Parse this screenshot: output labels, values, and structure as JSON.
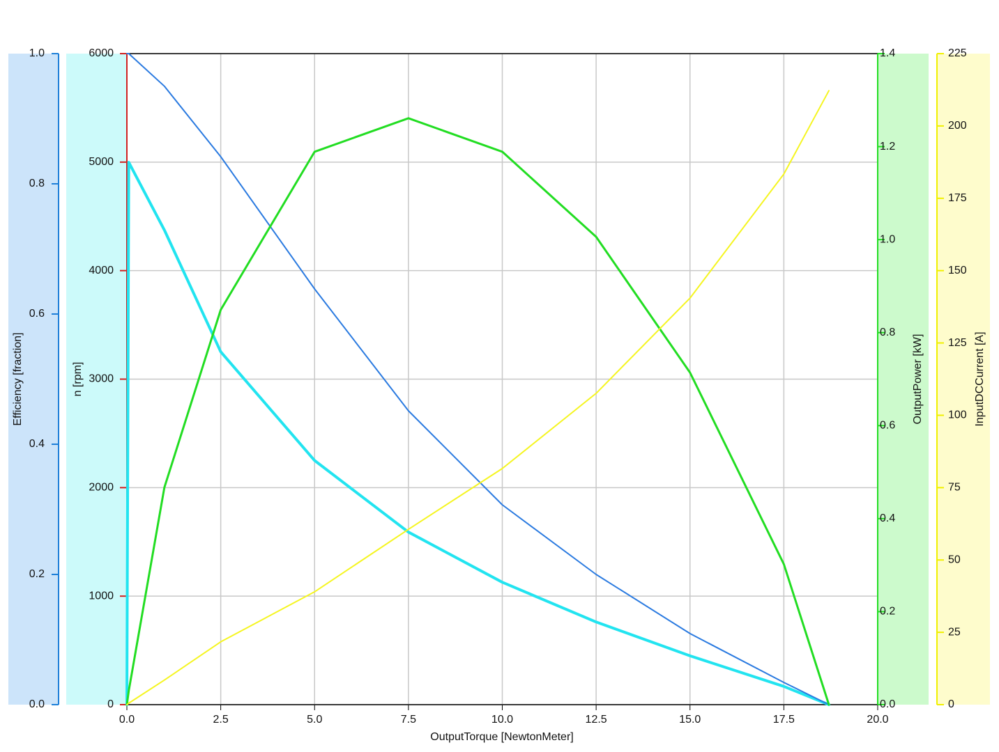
{
  "chart_data": {
    "type": "line",
    "xlabel": "OutputTorque [NewtonMeter]",
    "xlim": [
      0,
      20
    ],
    "xticks": [
      {
        "value": 0,
        "label": "0.0"
      },
      2.5,
      {
        "value": 5,
        "label": "5.0"
      },
      7.5,
      {
        "value": 10,
        "label": "10.0"
      },
      12.5,
      {
        "value": 15,
        "label": "15.0"
      },
      17.5,
      {
        "value": 20,
        "label": "20.0"
      }
    ],
    "grid": true,
    "y_axes": [
      {
        "label": "Efficiency [fraction]",
        "ylim": [
          0,
          1
        ],
        "yticks": [
          {
            "value": 0,
            "label": "0.0"
          },
          0.2,
          0.4,
          0.6,
          0.8,
          {
            "value": 1,
            "label": "1.0"
          }
        ],
        "band_color": "#cce4fa",
        "color": "#1e7fd8",
        "side": "left"
      },
      {
        "label": "n [rpm]",
        "ylim": [
          0,
          6000
        ],
        "yticks": [
          0,
          1000,
          2000,
          3000,
          4000,
          5000,
          6000
        ],
        "band_color": "#ccfafa",
        "color": "#d02020",
        "side": "left"
      },
      {
        "label": "OutputPower [kW]",
        "ylim": [
          0,
          1.4
        ],
        "yticks": [
          {
            "value": 0,
            "label": "0.0"
          },
          0.2,
          0.4,
          0.6,
          0.8,
          {
            "value": 1,
            "label": "1.0"
          },
          1.2,
          1.4
        ],
        "band_color": "#ccfacc",
        "color": "#22dd22",
        "side": "right"
      },
      {
        "label": "InputDCCurrent [A]",
        "ylim": [
          0,
          225
        ],
        "yticks": [
          0,
          25,
          50,
          75,
          100,
          125,
          150,
          175,
          200,
          225
        ],
        "band_color": "#fefccc",
        "color": "#f0f000",
        "side": "right"
      }
    ],
    "x": [
      0,
      0.05,
      1,
      2.5,
      5,
      7.5,
      10,
      12.5,
      15,
      17.5,
      18.7
    ],
    "series": [
      {
        "name": "Efficiency",
        "axis": 0,
        "color": "#22e4f0",
        "width": 4,
        "values": [
          0,
          0.833,
          0.729,
          0.542,
          0.375,
          0.265,
          0.188,
          0.127,
          0.075,
          0.028,
          0
        ]
      },
      {
        "name": "n",
        "axis": 1,
        "color": "#2a7ae0",
        "width": 2,
        "values": [
          6000,
          6000,
          5700,
          5050,
          3831,
          2708,
          1842,
          1200,
          655,
          205,
          0
        ]
      },
      {
        "name": "OutputPower",
        "axis": 2,
        "color": "#22dd22",
        "width": 3,
        "values": [
          0,
          0.03,
          0.467,
          0.849,
          1.189,
          1.261,
          1.189,
          1.006,
          0.714,
          0.302,
          0
        ]
      },
      {
        "name": "InputDCCurrent",
        "axis": 3,
        "color": "#f5f520",
        "width": 2,
        "values": [
          0,
          0.5,
          8.5,
          21.7,
          39,
          60.6,
          81.6,
          107.6,
          140.5,
          183.4,
          212.2
        ]
      }
    ]
  }
}
